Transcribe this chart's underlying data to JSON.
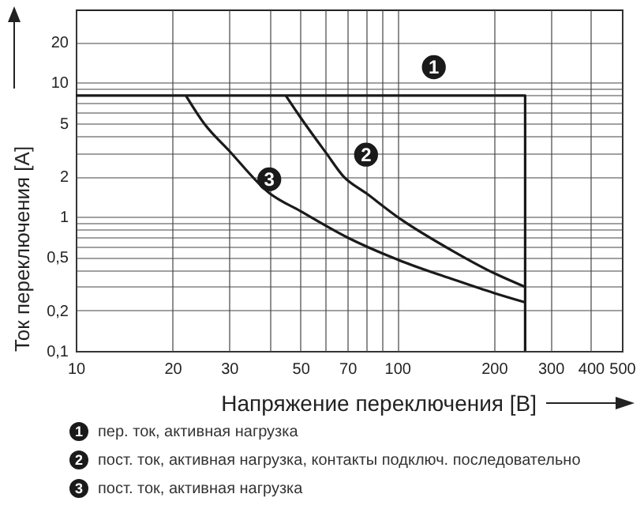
{
  "chart_data": {
    "type": "line",
    "xlabel": "Напряжение переключения [В]",
    "ylabel": "Ток переключения [A]",
    "log": "xy",
    "grid": true,
    "marker": "none",
    "line_style": "solid",
    "legend": "bottom",
    "xlim": [
      10,
      500
    ],
    "ylim": [
      0.1,
      35
    ],
    "xticks": [
      10,
      20,
      30,
      {
        "value": 40,
        "label": null
      },
      50,
      {
        "value": 60,
        "label": null
      },
      70,
      {
        "value": 80,
        "label": null
      },
      {
        "value": 90,
        "label": null
      },
      100,
      200,
      300,
      400,
      500
    ],
    "yticks": [
      {
        "value": 0.1,
        "label": "0,1"
      },
      {
        "value": 0.2,
        "label": "0,2"
      },
      {
        "value": 0.3,
        "label": null
      },
      {
        "value": 0.4,
        "label": null
      },
      {
        "value": 0.5,
        "label": "0,5"
      },
      {
        "value": 0.6,
        "label": null
      },
      {
        "value": 0.7,
        "label": null
      },
      {
        "value": 0.8,
        "label": null
      },
      {
        "value": 0.9,
        "label": null
      },
      1,
      2,
      {
        "value": 3,
        "label": null
      },
      {
        "value": 4,
        "label": null
      },
      5,
      {
        "value": 6,
        "label": null
      },
      {
        "value": 7,
        "label": null
      },
      {
        "value": 8,
        "label": null
      },
      {
        "value": 9,
        "label": null
      },
      10,
      20
    ],
    "series": [
      {
        "name": "пер. ток, активная нагрузка",
        "color": "#1a1a1a",
        "x": [
          10,
          250,
          250
        ],
        "values": [
          8,
          8,
          0.1
        ]
      },
      {
        "name": "пост. ток, активная нагрузка, контакты подключ. последовательно",
        "color": "#1a1a1a",
        "x": [
          45,
          50,
          60,
          68,
          80,
          100,
          150,
          200,
          250
        ],
        "values": [
          8,
          5.5,
          3,
          2,
          1.5,
          1.0,
          0.55,
          0.38,
          0.3
        ]
      },
      {
        "name": "пост. ток, активная нагрузка",
        "color": "#1a1a1a",
        "x": [
          22,
          25,
          30,
          40,
          50,
          70,
          100,
          150,
          200,
          250
        ],
        "values": [
          8,
          5,
          3.1,
          1.5,
          1.1,
          0.7,
          0.48,
          0.34,
          0.27,
          0.23
        ]
      }
    ],
    "annotations": [
      {
        "text": "1",
        "x": 130,
        "y": 13
      },
      {
        "text": "2",
        "x": 80,
        "y": 2.9
      },
      {
        "text": "3",
        "x": 40,
        "y": 1.9
      }
    ]
  }
}
